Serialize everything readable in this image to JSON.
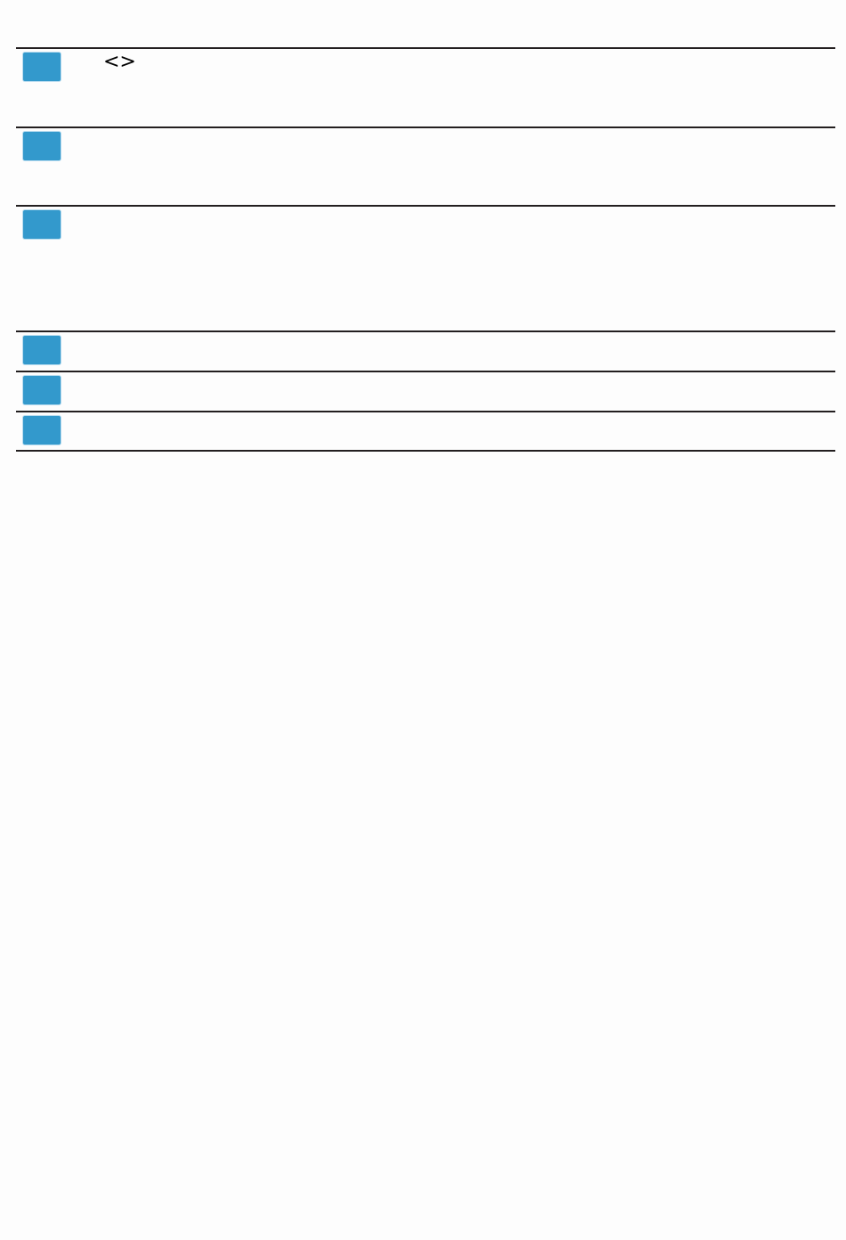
{
  "rows": [
    {
      "icon": "code-brackets-icon",
      "symbol": "<>"
    },
    {},
    {},
    {},
    {},
    {}
  ],
  "colors": {
    "accent": "#3399cc",
    "rule": "#231f20"
  }
}
